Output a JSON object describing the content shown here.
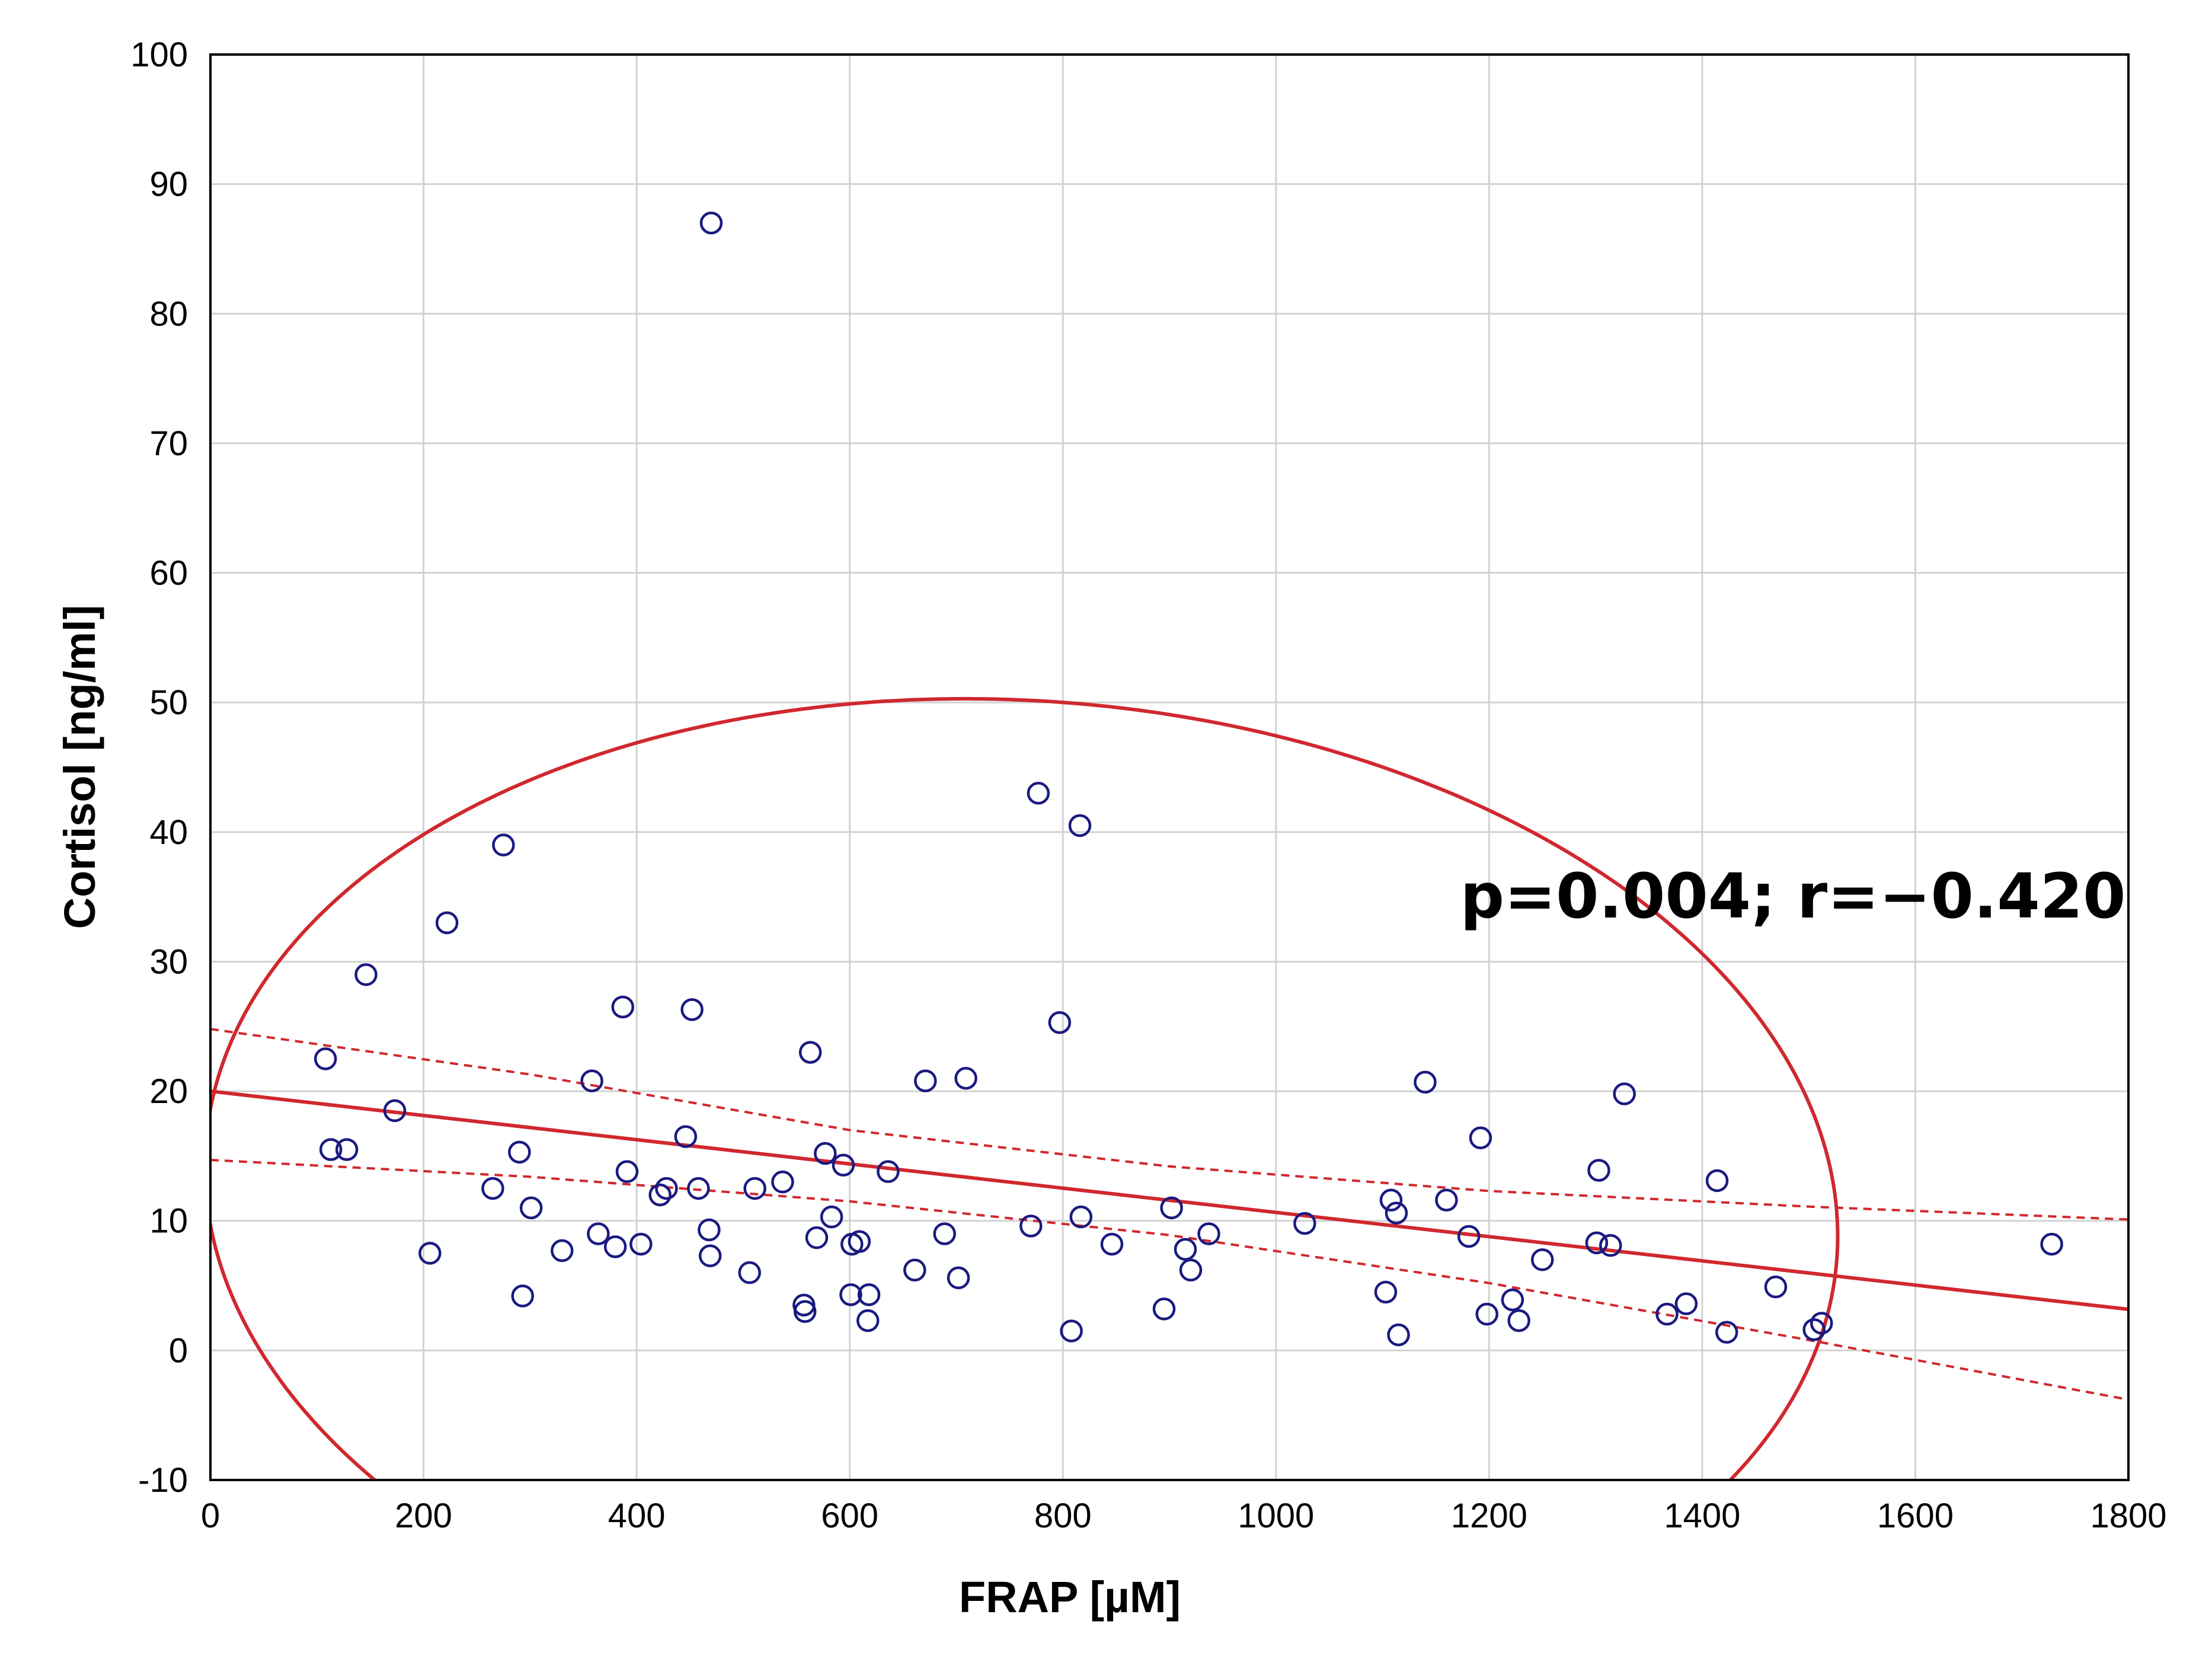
{
  "chart_data": {
    "type": "scatter",
    "xlabel": "FRAP [µM]",
    "ylabel": "Cortisol [ng/ml]",
    "xlim": [
      0,
      1800
    ],
    "ylim": [
      -10,
      100
    ],
    "xticks": [
      0,
      200,
      400,
      600,
      800,
      1000,
      1200,
      1400,
      1600,
      1800
    ],
    "yticks": [
      -10,
      0,
      10,
      20,
      30,
      40,
      50,
      60,
      70,
      80,
      90,
      100
    ],
    "grid": true,
    "annotation": "p=0.004; r=−0.420",
    "regression": {
      "intercept": 20.0,
      "slope": -0.00935
    },
    "confidence_band": {
      "x": [
        0,
        300,
        600,
        900,
        1200,
        1500,
        1800
      ],
      "upper": [
        24.8,
        21.3,
        17.0,
        14.2,
        12.3,
        11.1,
        10.1
      ],
      "lower": [
        14.7,
        13.4,
        11.5,
        8.9,
        5.2,
        0.8,
        -3.8
      ]
    },
    "ellipse": {
      "center": [
        761,
        11.5
      ],
      "rx": 770,
      "ry": 38.5,
      "rotation_deg": -10,
      "x_range": [
        0,
        1800
      ],
      "y_range": [
        -10,
        100
      ]
    },
    "series": [
      {
        "name": "observations",
        "points": [
          [
            108,
            22.5
          ],
          [
            113,
            15.5
          ],
          [
            128,
            15.5
          ],
          [
            146,
            29
          ],
          [
            173,
            18.5
          ],
          [
            206,
            7.5
          ],
          [
            222,
            33
          ],
          [
            265,
            12.5
          ],
          [
            275,
            39
          ],
          [
            290,
            15.3
          ],
          [
            293,
            4.2
          ],
          [
            301,
            11
          ],
          [
            330,
            7.7
          ],
          [
            358,
            20.8
          ],
          [
            364,
            9
          ],
          [
            380,
            8
          ],
          [
            387,
            26.5
          ],
          [
            391,
            13.8
          ],
          [
            404,
            8.2
          ],
          [
            422,
            12
          ],
          [
            428,
            12.5
          ],
          [
            446,
            16.5
          ],
          [
            452,
            26.3
          ],
          [
            458,
            12.5
          ],
          [
            468,
            9.3
          ],
          [
            469,
            7.3
          ],
          [
            470,
            87
          ],
          [
            506,
            6
          ],
          [
            511,
            12.5
          ],
          [
            537,
            13
          ],
          [
            557,
            3.5
          ],
          [
            558,
            3
          ],
          [
            563,
            23
          ],
          [
            569,
            8.7
          ],
          [
            577,
            15.2
          ],
          [
            583,
            10.3
          ],
          [
            594,
            14.3
          ],
          [
            601,
            4.3
          ],
          [
            602,
            8.2
          ],
          [
            609,
            8.4
          ],
          [
            617,
            2.3
          ],
          [
            618,
            4.3
          ],
          [
            636,
            13.8
          ],
          [
            661,
            6.2
          ],
          [
            671,
            20.8
          ],
          [
            689,
            9
          ],
          [
            702,
            5.6
          ],
          [
            709,
            21
          ],
          [
            770,
            9.6
          ],
          [
            777,
            43
          ],
          [
            797,
            25.3
          ],
          [
            808,
            1.5
          ],
          [
            816,
            40.5
          ],
          [
            817,
            10.3
          ],
          [
            846,
            8.2
          ],
          [
            895,
            3.2
          ],
          [
            902,
            11
          ],
          [
            915,
            7.8
          ],
          [
            920,
            6.2
          ],
          [
            937,
            9
          ],
          [
            1027,
            9.8
          ],
          [
            1103,
            4.5
          ],
          [
            1108,
            11.6
          ],
          [
            1113,
            10.6
          ],
          [
            1115,
            1.2
          ],
          [
            1140,
            20.7
          ],
          [
            1160,
            11.6
          ],
          [
            1181,
            8.8
          ],
          [
            1192,
            16.4
          ],
          [
            1198,
            2.8
          ],
          [
            1222,
            3.9
          ],
          [
            1228,
            2.3
          ],
          [
            1250,
            7
          ],
          [
            1301,
            8.3
          ],
          [
            1303,
            13.9
          ],
          [
            1314,
            8.1
          ],
          [
            1327,
            19.8
          ],
          [
            1367,
            2.8
          ],
          [
            1385,
            3.6
          ],
          [
            1414,
            13.1
          ],
          [
            1423,
            1.4
          ],
          [
            1469,
            4.9
          ],
          [
            1505,
            1.6
          ],
          [
            1512,
            2.1
          ],
          [
            1728,
            8.2
          ]
        ]
      }
    ]
  }
}
